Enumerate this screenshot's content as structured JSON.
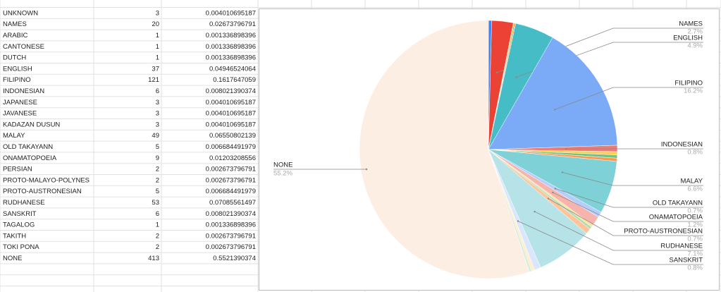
{
  "table": {
    "rows": [
      [
        "UNKNOWN",
        3,
        0.004010695187
      ],
      [
        "NAMES",
        20,
        0.02673796791
      ],
      [
        "ARABIC",
        1,
        0.001336898396
      ],
      [
        "CANTONESE",
        1,
        0.001336898396
      ],
      [
        "DUTCH",
        1,
        0.001336898396
      ],
      [
        "ENGLISH",
        37,
        0.04946524064
      ],
      [
        "FILIPINO",
        121,
        0.1617647059
      ],
      [
        "INDONESIAN",
        6,
        0.008021390374
      ],
      [
        "JAPANESE",
        3,
        0.004010695187
      ],
      [
        "JAVANESE",
        3,
        0.004010695187
      ],
      [
        "KADAZAN DUSUN",
        3,
        0.004010695187
      ],
      [
        "MALAY",
        49,
        0.06550802139
      ],
      [
        "OLD TAKAYANN",
        5,
        0.006684491979
      ],
      [
        "ONAMATOPOEIA",
        9,
        0.01203208556
      ],
      [
        "PERSIAN",
        2,
        0.002673796791
      ],
      [
        "PROTO-MALAYO-POLYNES",
        2,
        0.002673796791
      ],
      [
        "PROTO-AUSTRONESIAN",
        5,
        0.006684491979
      ],
      [
        "RUDHANESE",
        53,
        0.07085561497
      ],
      [
        "SANSKRIT",
        6,
        0.008021390374
      ],
      [
        "TAGALOG",
        1,
        0.001336898396
      ],
      [
        "TAKITH",
        2,
        0.002673796791
      ],
      [
        "TOKI PONA",
        2,
        0.002673796791
      ],
      [
        "NONE",
        413,
        0.5521390374
      ]
    ]
  },
  "chart_data": {
    "type": "pie",
    "categories": [
      null,
      "NAMES",
      null,
      null,
      null,
      "ENGLISH",
      "FILIPINO",
      "INDONESIAN",
      null,
      null,
      null,
      "MALAY",
      "OLD TAKAYANN",
      "ONAMATOPOEIA",
      null,
      null,
      "PROTO-AUSTRONESIAN",
      "RUDHANESE",
      "SANSKRIT",
      null,
      null,
      null,
      "NONE"
    ],
    "values": [
      0.4,
      2.7,
      0.1,
      0.1,
      0.1,
      4.9,
      16.2,
      0.8,
      0.4,
      0.4,
      0.4,
      6.6,
      0.7,
      1.2,
      0.3,
      0.3,
      0.7,
      7.1,
      0.8,
      0.1,
      0.3,
      0.3,
      55.2
    ],
    "value_labels": [
      null,
      "2.7%",
      null,
      null,
      null,
      "4.9%",
      "16.2%",
      "0.8%",
      null,
      null,
      null,
      "6.6%",
      "0.7%",
      "1.2%",
      null,
      null,
      "0.7%",
      "7.1%",
      "0.8%",
      null,
      null,
      null,
      "55.2%"
    ],
    "colors": [
      "#4285f4",
      "#ea4335",
      "#fbbc04",
      "#34a853",
      "#ff6d01",
      "#46bdc6",
      "#7baaf7",
      "#f07b72",
      "#fcd04f",
      "#71c287",
      "#ff994d",
      "#7ed1d7",
      "#b3cefb",
      "#f7b4ae",
      "#fde49b",
      "#aedcba",
      "#ffc599",
      "#b5e3e8",
      "#d9e6fd",
      "#fbd9d6",
      "#feefc3",
      "#d6eddd",
      "#fdeee3"
    ]
  }
}
